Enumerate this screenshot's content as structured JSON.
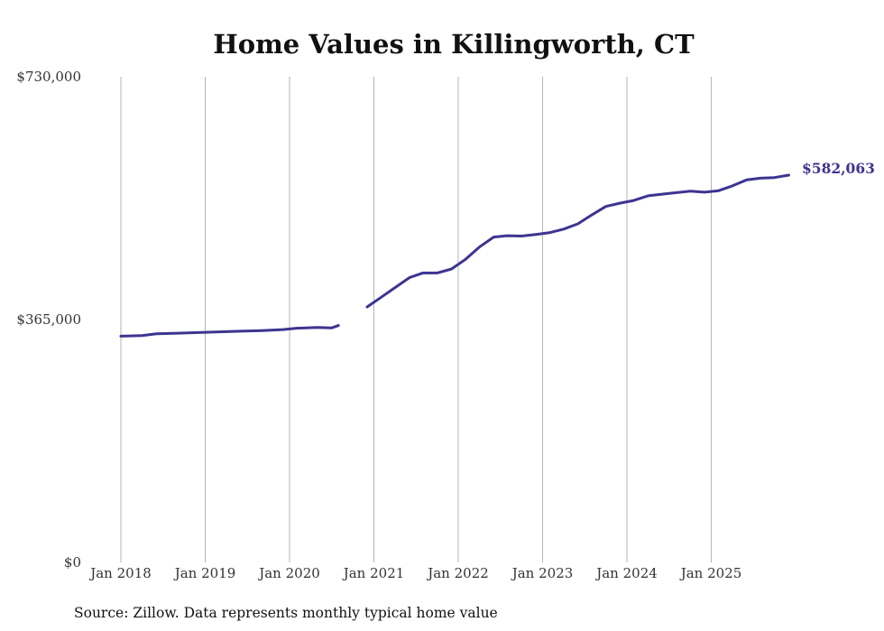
{
  "chart_data": {
    "type": "line",
    "title": "Home Values in Killingworth, CT",
    "source": "Source: Zillow. Data represents monthly typical home value",
    "ylim": [
      0,
      730000
    ],
    "y_ticks": [
      {
        "value": 0,
        "label": "$0"
      },
      {
        "value": 365000,
        "label": "$365,000"
      },
      {
        "value": 730000,
        "label": "$730,000"
      }
    ],
    "x_ticks": [
      {
        "year": 2018,
        "label": "Jan 2018"
      },
      {
        "year": 2019,
        "label": "Jan 2019"
      },
      {
        "year": 2020,
        "label": "Jan 2020"
      },
      {
        "year": 2021,
        "label": "Jan 2021"
      },
      {
        "year": 2022,
        "label": "Jan 2022"
      },
      {
        "year": 2023,
        "label": "Jan 2023"
      },
      {
        "year": 2024,
        "label": "Jan 2024"
      },
      {
        "year": 2025,
        "label": "Jan 2025"
      }
    ],
    "end_label": "$582,063",
    "series": [
      {
        "name": "Typical home value",
        "color": "#3d3490",
        "segments": [
          [
            {
              "x": 2018.0,
              "y": 340000
            },
            {
              "x": 2018.25,
              "y": 341000
            },
            {
              "x": 2018.42,
              "y": 343500
            },
            {
              "x": 2018.67,
              "y": 344500
            },
            {
              "x": 2018.92,
              "y": 345500
            },
            {
              "x": 2019.17,
              "y": 346500
            },
            {
              "x": 2019.42,
              "y": 347500
            },
            {
              "x": 2019.67,
              "y": 348500
            },
            {
              "x": 2019.92,
              "y": 350000
            },
            {
              "x": 2020.08,
              "y": 352000
            },
            {
              "x": 2020.33,
              "y": 353000
            },
            {
              "x": 2020.5,
              "y": 352500
            },
            {
              "x": 2020.58,
              "y": 356000
            }
          ],
          [
            {
              "x": 2020.92,
              "y": 384000
            },
            {
              "x": 2021.08,
              "y": 398000
            },
            {
              "x": 2021.25,
              "y": 413000
            },
            {
              "x": 2021.42,
              "y": 428000
            },
            {
              "x": 2021.58,
              "y": 435000
            },
            {
              "x": 2021.75,
              "y": 435000
            },
            {
              "x": 2021.92,
              "y": 441000
            },
            {
              "x": 2022.08,
              "y": 455000
            },
            {
              "x": 2022.25,
              "y": 474000
            },
            {
              "x": 2022.42,
              "y": 489000
            },
            {
              "x": 2022.58,
              "y": 491000
            },
            {
              "x": 2022.75,
              "y": 490500
            },
            {
              "x": 2022.92,
              "y": 493000
            },
            {
              "x": 2023.08,
              "y": 495500
            },
            {
              "x": 2023.25,
              "y": 501000
            },
            {
              "x": 2023.42,
              "y": 509000
            },
            {
              "x": 2023.58,
              "y": 522000
            },
            {
              "x": 2023.75,
              "y": 535000
            },
            {
              "x": 2023.92,
              "y": 540000
            },
            {
              "x": 2024.08,
              "y": 544000
            },
            {
              "x": 2024.25,
              "y": 551000
            },
            {
              "x": 2024.5,
              "y": 554500
            },
            {
              "x": 2024.75,
              "y": 558000
            },
            {
              "x": 2024.92,
              "y": 556500
            },
            {
              "x": 2025.08,
              "y": 558500
            },
            {
              "x": 2025.25,
              "y": 566000
            },
            {
              "x": 2025.42,
              "y": 575000
            },
            {
              "x": 2025.58,
              "y": 577500
            },
            {
              "x": 2025.75,
              "y": 578500
            },
            {
              "x": 2025.92,
              "y": 582063
            }
          ]
        ]
      }
    ]
  }
}
